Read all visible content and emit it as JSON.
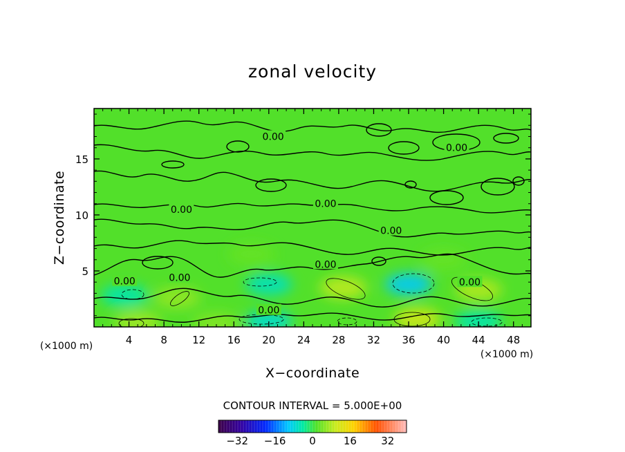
{
  "chart_data": {
    "type": "heatmap",
    "title": "zonal velocity",
    "xlabel": "X−coordinate",
    "ylabel": "Z−coordinate",
    "x_units_left": "(×1000 m)",
    "x_units_right": "(×1000 m)",
    "xlim": [
      0,
      50
    ],
    "ylim": [
      0,
      19.5
    ],
    "x_ticks": [
      4,
      8,
      12,
      16,
      20,
      24,
      28,
      32,
      36,
      40,
      44,
      48
    ],
    "y_ticks": [
      5,
      10,
      15
    ],
    "contour_interval_text": "CONTOUR INTERVAL = 5.000E+00",
    "contour_label": "0.00",
    "contour_label_positions": [
      {
        "x": 20.5,
        "z": 17.0
      },
      {
        "x": 41.5,
        "z": 16.0
      },
      {
        "x": 10.0,
        "z": 10.5
      },
      {
        "x": 26.5,
        "z": 11.0
      },
      {
        "x": 34.0,
        "z": 8.6
      },
      {
        "x": 26.5,
        "z": 5.6
      },
      {
        "x": 3.5,
        "z": 4.1
      },
      {
        "x": 9.8,
        "z": 4.4
      },
      {
        "x": 43.0,
        "z": 4.0
      },
      {
        "x": 20.0,
        "z": 1.5
      }
    ],
    "features": [
      {
        "x": 3.5,
        "z": 2.8,
        "value": -5
      },
      {
        "x": 9.5,
        "z": 2.6,
        "value": 6
      },
      {
        "x": 20.0,
        "z": 3.8,
        "value": -6
      },
      {
        "x": 28.5,
        "z": 3.5,
        "value": 9
      },
      {
        "x": 36.0,
        "z": 3.8,
        "value": -10
      },
      {
        "x": 44.0,
        "z": 3.3,
        "value": 8
      },
      {
        "x": 20.0,
        "z": 0.5,
        "value": -7
      },
      {
        "x": 37.0,
        "z": 0.7,
        "value": 11
      },
      {
        "x": 44.0,
        "z": 0.5,
        "value": -5
      },
      {
        "x": 5.0,
        "z": 0.4,
        "value": 7
      },
      {
        "x": 14.0,
        "z": 0.3,
        "value": 5
      },
      {
        "x": 18.0,
        "z": 6.5,
        "value": 3
      },
      {
        "x": 40.0,
        "z": 6.0,
        "value": 3
      }
    ],
    "colorbar": {
      "range": [
        -40,
        40
      ],
      "tick_values": [
        -32,
        -16,
        0,
        16,
        32
      ],
      "tick_labels": [
        "−32",
        "−16",
        "0",
        "16",
        "32"
      ]
    }
  }
}
